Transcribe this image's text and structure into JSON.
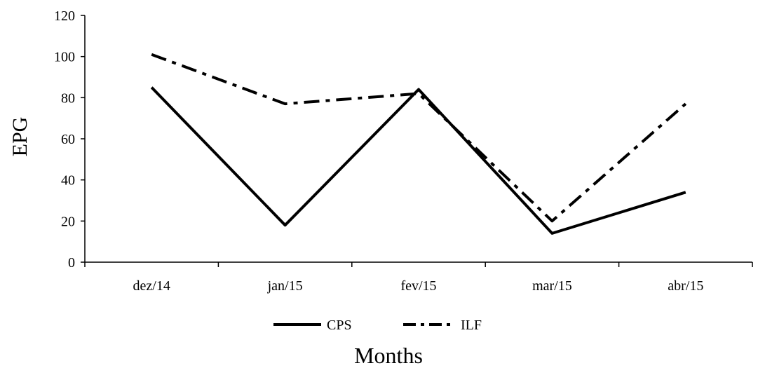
{
  "chart_data": {
    "type": "line",
    "title": "",
    "xlabel": "Months",
    "ylabel": "EPG",
    "categories": [
      "dez/14",
      "jan/15",
      "fev/15",
      "mar/15",
      "abr/15"
    ],
    "ylim": [
      0,
      120
    ],
    "yticks": [
      0,
      20,
      40,
      60,
      80,
      100,
      120
    ],
    "grid": false,
    "legend": "bottom",
    "series": [
      {
        "name": "CPS",
        "values": [
          85,
          18,
          84,
          14,
          34
        ],
        "style": "solid",
        "color": "#000000"
      },
      {
        "name": "ILF",
        "values": [
          101,
          77,
          82,
          20,
          77
        ],
        "style": "dash-dot",
        "color": "#000000"
      }
    ]
  }
}
